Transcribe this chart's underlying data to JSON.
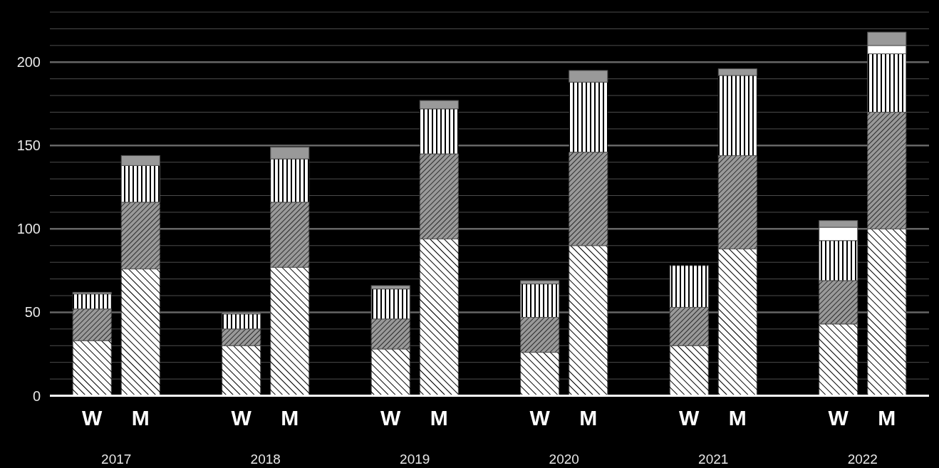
{
  "chart_data": {
    "type": "bar",
    "stacked": true,
    "categories": [
      "W",
      "M",
      "W",
      "M",
      "W",
      "M",
      "W",
      "M",
      "W",
      "M",
      "W",
      "M"
    ],
    "series": [
      {
        "color": "#ffffff",
        "values": [
          33,
          76,
          30,
          77,
          28,
          94,
          26,
          90,
          30,
          88,
          43,
          100
        ]
      },
      {
        "color": "#999999",
        "values": [
          19,
          40,
          10,
          39,
          18,
          51,
          21,
          56,
          23,
          56,
          26,
          70
        ]
      },
      {
        "color": "#ffffff",
        "values": [
          9,
          22,
          9,
          26,
          18,
          27,
          20,
          42,
          25,
          48,
          24,
          35
        ]
      },
      {
        "color": "#ffffff",
        "values": [
          null,
          null,
          null,
          null,
          null,
          null,
          null,
          null,
          null,
          null,
          8,
          5
        ]
      },
      {
        "color": "#999999",
        "values": [
          1,
          6,
          1,
          7,
          2,
          5,
          2,
          7,
          null,
          4,
          4,
          8
        ]
      }
    ],
    "ylim": [
      0,
      230
    ],
    "yticks": [
      0,
      {
        "value": 10,
        "label": null
      },
      {
        "value": 20,
        "label": null
      },
      {
        "value": 30,
        "label": null
      },
      {
        "value": 40,
        "label": null
      },
      50,
      {
        "value": 60,
        "label": null
      },
      {
        "value": 70,
        "label": null
      },
      {
        "value": 80,
        "label": null
      },
      {
        "value": 90,
        "label": null
      },
      100,
      {
        "value": 110,
        "label": null
      },
      {
        "value": 120,
        "label": null
      },
      {
        "value": 130,
        "label": null
      },
      {
        "value": 140,
        "label": null
      },
      150,
      {
        "value": 160,
        "label": null
      },
      {
        "value": 170,
        "label": null
      },
      {
        "value": 180,
        "label": null
      },
      {
        "value": 190,
        "label": null
      },
      200,
      {
        "value": 210,
        "label": null
      },
      {
        "value": 220,
        "label": null
      },
      {
        "value": 230,
        "label": null
      }
    ],
    "grid": "y",
    "annotations": [
      "2017",
      "2018",
      "2019",
      "2020",
      "2021",
      "2022"
    ]
  }
}
